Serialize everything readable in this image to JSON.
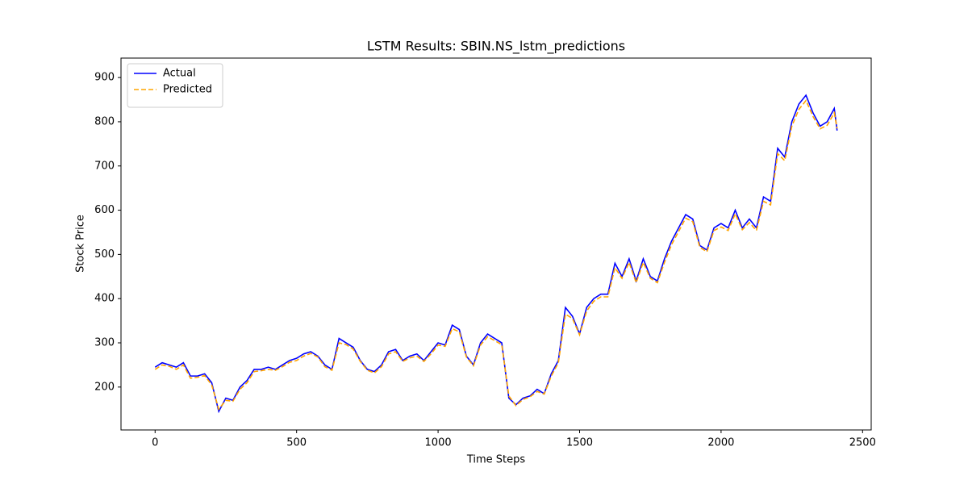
{
  "chart_data": {
    "type": "line",
    "title": "LSTM Results: SBIN.NS_lstm_predictions",
    "x_label": "Time Steps",
    "y_label": "Stock Price",
    "x": [
      0,
      25,
      50,
      75,
      100,
      125,
      150,
      175,
      200,
      225,
      250,
      275,
      300,
      325,
      350,
      375,
      400,
      425,
      450,
      475,
      500,
      525,
      550,
      575,
      600,
      625,
      650,
      675,
      700,
      725,
      750,
      775,
      800,
      825,
      850,
      875,
      900,
      925,
      950,
      975,
      1000,
      1025,
      1050,
      1075,
      1100,
      1125,
      1150,
      1175,
      1200,
      1225,
      1250,
      1275,
      1300,
      1325,
      1350,
      1375,
      1400,
      1425,
      1450,
      1475,
      1500,
      1525,
      1550,
      1575,
      1600,
      1625,
      1650,
      1675,
      1700,
      1725,
      1750,
      1775,
      1800,
      1825,
      1850,
      1875,
      1900,
      1925,
      1950,
      1975,
      2000,
      2025,
      2050,
      2075,
      2100,
      2125,
      2150,
      2175,
      2200,
      2225,
      2250,
      2275,
      2300,
      2325,
      2350,
      2375,
      2400,
      2410
    ],
    "series": [
      {
        "name": "Actual",
        "color": "#0000ff",
        "linestyle": "solid",
        "values": [
          245,
          255,
          250,
          245,
          255,
          225,
          225,
          230,
          210,
          145,
          175,
          170,
          200,
          215,
          240,
          240,
          245,
          240,
          250,
          260,
          265,
          275,
          280,
          270,
          250,
          240,
          310,
          300,
          290,
          260,
          240,
          235,
          250,
          280,
          285,
          260,
          270,
          275,
          260,
          280,
          300,
          295,
          340,
          330,
          270,
          250,
          300,
          320,
          310,
          300,
          175,
          160,
          175,
          180,
          195,
          185,
          230,
          260,
          380,
          360,
          320,
          380,
          400,
          410,
          410,
          480,
          450,
          490,
          440,
          490,
          450,
          440,
          490,
          530,
          560,
          590,
          580,
          520,
          510,
          560,
          570,
          560,
          600,
          560,
          580,
          560,
          630,
          620,
          740,
          720,
          800,
          840,
          860,
          820,
          790,
          800,
          830,
          780
        ]
      },
      {
        "name": "Predicted",
        "color": "#ffa500",
        "linestyle": "dashed",
        "values": [
          240,
          250,
          247,
          240,
          250,
          220,
          222,
          226,
          205,
          150,
          170,
          168,
          195,
          210,
          235,
          237,
          240,
          238,
          246,
          256,
          260,
          270,
          276,
          268,
          246,
          238,
          300,
          296,
          286,
          258,
          238,
          232,
          246,
          275,
          280,
          258,
          266,
          270,
          258,
          275,
          295,
          292,
          332,
          325,
          268,
          248,
          295,
          314,
          305,
          296,
          180,
          158,
          172,
          178,
          190,
          184,
          225,
          255,
          365,
          355,
          318,
          372,
          394,
          404,
          404,
          470,
          446,
          482,
          436,
          482,
          446,
          436,
          482,
          522,
          552,
          582,
          574,
          516,
          506,
          554,
          562,
          554,
          592,
          556,
          572,
          554,
          620,
          612,
          728,
          712,
          790,
          828,
          848,
          812,
          784,
          792,
          820,
          785
        ]
      }
    ],
    "xlim": [
      -120.5,
      2530.5
    ],
    "ylim": [
      103,
      944
    ],
    "xticks": [
      0,
      500,
      1000,
      1500,
      2000,
      2500
    ],
    "yticks": [
      200,
      300,
      400,
      500,
      600,
      700,
      800,
      900
    ],
    "grid": false,
    "legend": "upper left"
  }
}
